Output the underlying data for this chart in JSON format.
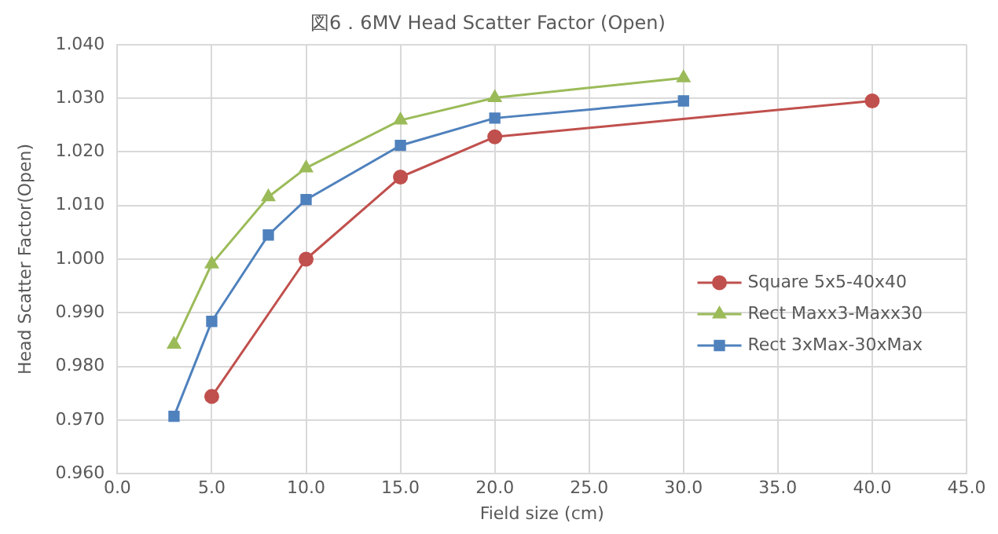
{
  "chart_data": {
    "type": "line",
    "title": "図6．6MV Head Scatter Factor (Open)",
    "xlabel": "Field size (cm)",
    "ylabel": "Head Scatter Factor(Open)",
    "xlim": [
      0,
      45
    ],
    "xticks": [
      {
        "value": 0,
        "label": "0.0"
      },
      {
        "value": 5,
        "label": "5.0"
      },
      {
        "value": 10,
        "label": "10.0"
      },
      {
        "value": 15,
        "label": "15.0"
      },
      {
        "value": 20,
        "label": "20.0"
      },
      {
        "value": 25,
        "label": "25.0"
      },
      {
        "value": 30,
        "label": "30.0"
      },
      {
        "value": 35,
        "label": "35.0"
      },
      {
        "value": 40,
        "label": "40.0"
      },
      {
        "value": 45,
        "label": "45.0"
      }
    ],
    "ylim": [
      0.96,
      1.04
    ],
    "yticks": [
      {
        "value": 0.96,
        "label": "0.960"
      },
      {
        "value": 0.97,
        "label": "0.970"
      },
      {
        "value": 0.98,
        "label": "0.980"
      },
      {
        "value": 0.99,
        "label": "0.990"
      },
      {
        "value": 1.0,
        "label": "1.000"
      },
      {
        "value": 1.01,
        "label": "1.010"
      },
      {
        "value": 1.02,
        "label": "1.020"
      },
      {
        "value": 1.03,
        "label": "1.030"
      },
      {
        "value": 1.04,
        "label": "1.040"
      }
    ],
    "grid": true,
    "legend": "right",
    "line_style": "solid",
    "series": [
      {
        "name": "Square 5x5-40x40",
        "color": "#c0504d",
        "marker": "circle",
        "x": [
          5,
          10,
          15,
          20,
          40
        ],
        "values": [
          0.9744,
          1.0,
          1.0153,
          1.0228,
          1.0295
        ]
      },
      {
        "name": "Rect Maxx3-Maxx30",
        "color": "#9bbb59",
        "marker": "triangle",
        "x": [
          3,
          5,
          8,
          10,
          15,
          20,
          30
        ],
        "values": [
          0.9841,
          0.9991,
          1.0116,
          1.017,
          1.0259,
          1.0301,
          1.0338
        ]
      },
      {
        "name": "Rect 3xMax-30xMax",
        "color": "#4f81bd",
        "marker": "square",
        "x": [
          3,
          5,
          8,
          10,
          15,
          20,
          30
        ],
        "values": [
          0.9707,
          0.9884,
          1.0045,
          1.0111,
          1.0212,
          1.0263,
          1.0295
        ]
      }
    ]
  }
}
